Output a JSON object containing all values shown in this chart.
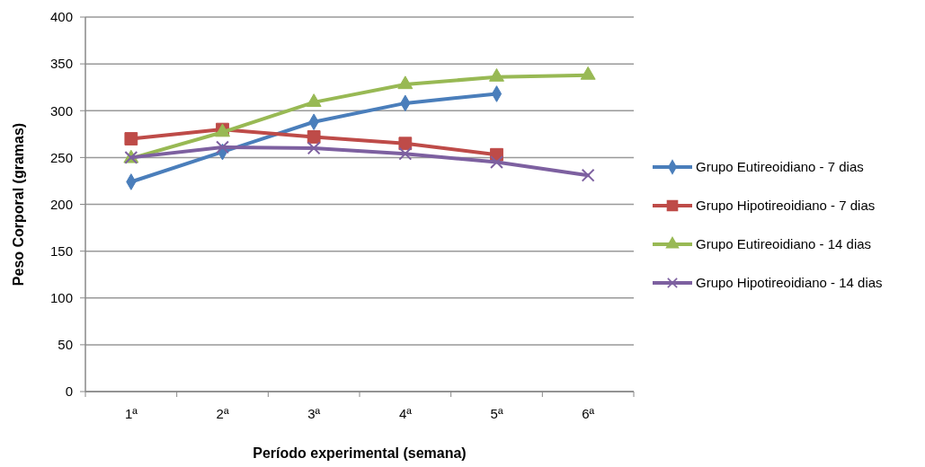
{
  "chart_data": {
    "type": "line",
    "xlabel": "Período experimental (semana)",
    "ylabel": "Peso Corporal (gramas)",
    "categories": [
      "1ª",
      "2ª",
      "3ª",
      "4ª",
      "5ª",
      "6ª"
    ],
    "ylim": [
      0,
      400
    ],
    "yticks": [
      0,
      50,
      100,
      150,
      200,
      250,
      300,
      350,
      400
    ],
    "grid": "y",
    "legend": "right",
    "series": [
      {
        "name": "Grupo Eutireoidiano - 7 dias",
        "color": "#4a7ebb",
        "marker": "diamond",
        "values": [
          224,
          256,
          288,
          308,
          318,
          null
        ]
      },
      {
        "name": "Grupo Hipotireoidiano - 7 dias",
        "color": "#be4b48",
        "marker": "square",
        "values": [
          270,
          280,
          272,
          265,
          253,
          null
        ]
      },
      {
        "name": "Grupo Eutireoidiano - 14 dias",
        "color": "#98b954",
        "marker": "triangle",
        "values": [
          249,
          277,
          309,
          328,
          336,
          338
        ]
      },
      {
        "name": "Grupo Hipotireoidiano - 14 dias",
        "color": "#7d60a0",
        "marker": "cross",
        "values": [
          250,
          261,
          260,
          254,
          245,
          231
        ]
      }
    ]
  }
}
